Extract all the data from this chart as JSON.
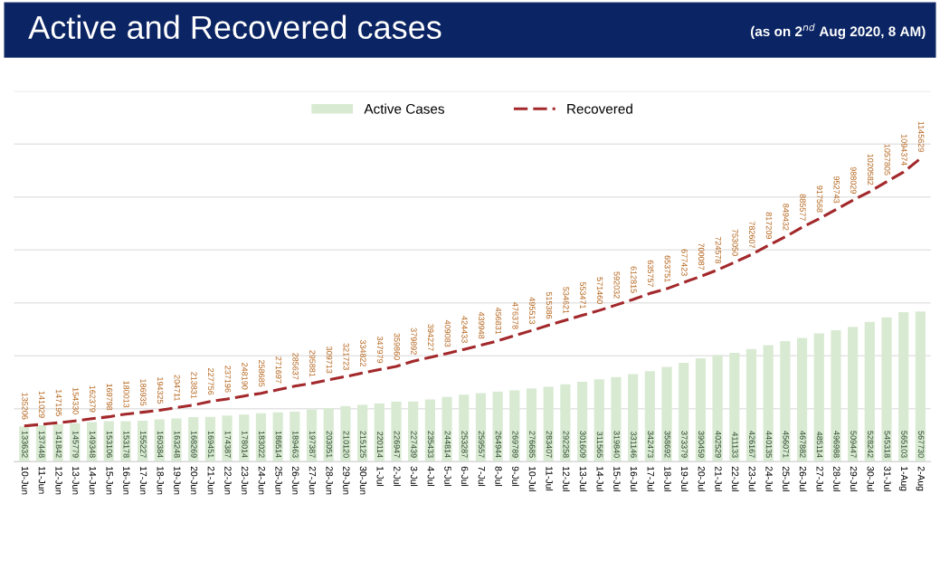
{
  "chart_data": {
    "type": "bar",
    "title": "Active and Recovered cases",
    "subtitle": "(as on 2$^{nd}$ Aug 2020, 8 AM)",
    "categories": [
      "10-Jun",
      "11-Jun",
      "12-Jun",
      "13-Jun",
      "14-Jun",
      "15-Jun",
      "16-Jun",
      "17-Jun",
      "18-Jun",
      "19-Jun",
      "20-Jun",
      "21-Jun",
      "22-Jun",
      "23-Jun",
      "24-Jun",
      "25-Jun",
      "26-Jun",
      "27-Jun",
      "28-Jun",
      "29-Jun",
      "30-Jun",
      "1-Jul",
      "2-Jul",
      "3-Jul",
      "4-Jul",
      "5-Jul",
      "6-Jul",
      "7-Jul",
      "8-Jul",
      "9-Jul",
      "10-Jul",
      "11-Jul",
      "12-Jul",
      "13-Jul",
      "14-Jul",
      "15-Jul",
      "16-Jul",
      "17-Jul",
      "18-Jul",
      "19-Jul",
      "20-Jul",
      "21-Jul",
      "22-Jul",
      "23-Jul",
      "24-Jul",
      "25-Jul",
      "26-Jul",
      "27-Jul",
      "28-Jul",
      "29-Jul",
      "30-Jul",
      "31-Jul",
      "1-Aug",
      "2-Aug"
    ],
    "series": [
      {
        "name": "Active Cases",
        "color": "#d9ead3",
        "values": [
          133632,
          137448,
          141842,
          145779,
          149348,
          153106,
          153178,
          155227,
          160384,
          163248,
          168269,
          169451,
          174387,
          178014,
          183022,
          186514,
          189463,
          197387,
          203051,
          210120,
          215125,
          220114,
          226947,
          227439,
          235433,
          244814,
          253287,
          259557,
          264944,
          269789,
          276685,
          283407,
          292258,
          301609,
          311565,
          319840,
          331146,
          342473,
          358692,
          373379,
          390459,
          402529,
          411133,
          426167,
          440135,
          456071,
          467882,
          485114,
          496988,
          509447,
          528242,
          545318,
          565103,
          567730
        ]
      },
      {
        "name": "Recovered",
        "type": "line",
        "color": "#a3282b",
        "line_style": "dashed",
        "values": [
          135206,
          141029,
          147195,
          154330,
          162379,
          169798,
          180013,
          186935,
          194325,
          204711,
          213831,
          227756,
          237196,
          248190,
          258685,
          271697,
          285637,
          295881,
          309713,
          321723,
          334822,
          347979,
          359860,
          379892,
          394227,
          409083,
          424433,
          439948,
          456831,
          476378,
          495513,
          515386,
          534621,
          553471,
          571460,
          592032,
          612815,
          635757,
          653751,
          677423,
          700087,
          724578,
          753050,
          782607,
          817209,
          849432,
          885577,
          917568,
          952743,
          988029,
          1020582,
          1057805,
          1094374,
          1145629
        ]
      }
    ],
    "ylim": [
      0,
      1400000
    ],
    "yticks": [
      {
        "value": 0,
        "label": null
      },
      {
        "value": 200000,
        "label": null
      },
      {
        "value": 400000,
        "label": null
      },
      {
        "value": 600000,
        "label": null
      },
      {
        "value": 800000,
        "label": null
      },
      {
        "value": 1000000,
        "label": null
      },
      {
        "value": 1200000,
        "label": null
      },
      {
        "value": 1400000,
        "label": null
      }
    ],
    "tick_labels": "x",
    "grid": "y",
    "legend": "top",
    "data_labels": true
  }
}
